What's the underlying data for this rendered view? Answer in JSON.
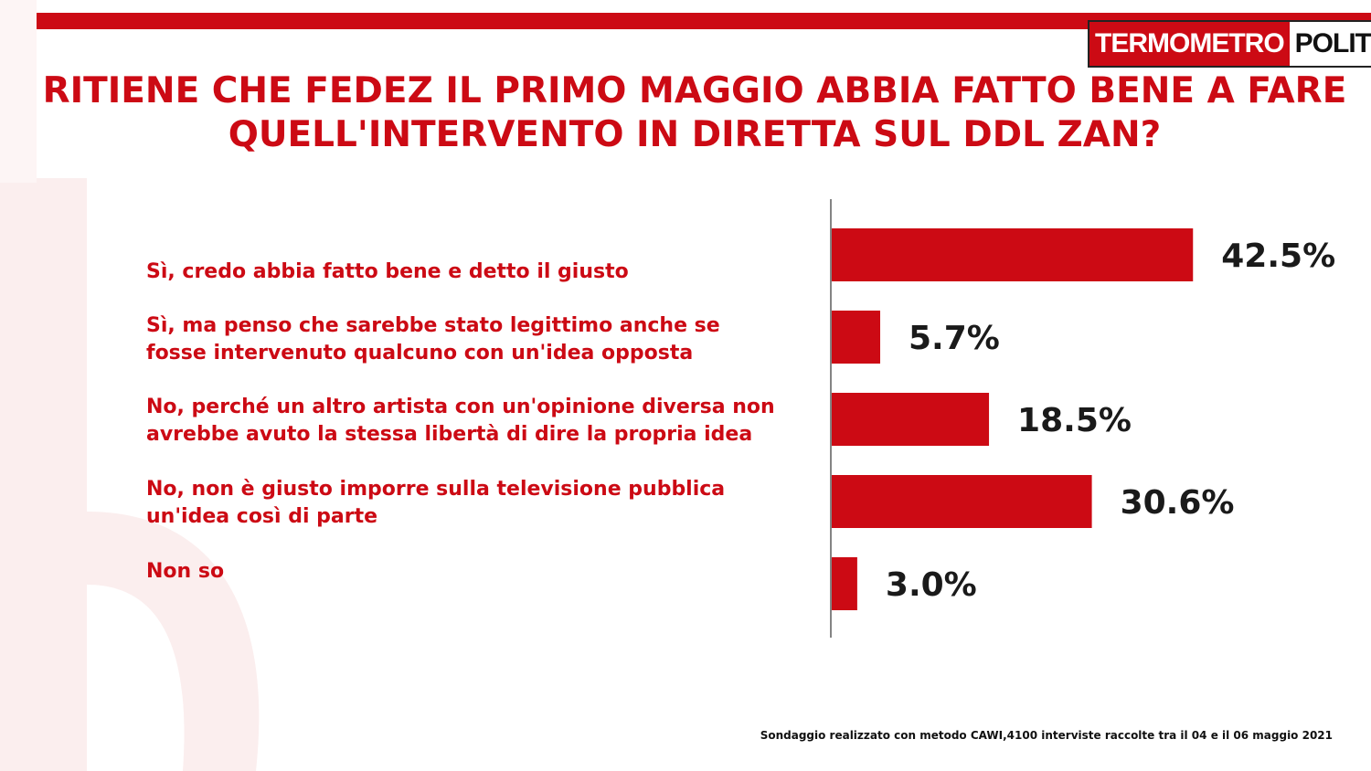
{
  "header": {
    "logo_left": "TERMOMETRO",
    "logo_right": "POLITICO",
    "title": "RITIENE CHE FEDEZ IL PRIMO MAGGIO ABBIA FATTO BENE A FARE QUELL'INTERVENTO IN DIRETTA SUL DDL ZAN?"
  },
  "colors": {
    "accent": "#cc0a14",
    "bar": "#cc0a14"
  },
  "chart_data": {
    "type": "bar",
    "orientation": "horizontal",
    "title": "RITIENE CHE FEDEZ IL PRIMO MAGGIO ABBIA FATTO BENE A FARE QUELL'INTERVENTO IN DIRETTA SUL DDL ZAN?",
    "categories": [
      "Sì, credo abbia fatto bene e detto il giusto",
      "Sì, ma penso che sarebbe stato legittimo anche se fosse intervenuto qualcuno con un'idea opposta",
      "No, perché un altro artista con un'opinione diversa non avrebbe avuto la stessa libertà  di dire la propria idea",
      "No, non è giusto imporre sulla televisione pubblica un'idea così di parte",
      "Non so"
    ],
    "values": [
      42.5,
      5.7,
      18.5,
      30.6,
      3.0
    ],
    "value_labels": [
      "42.5%",
      "5.7%",
      "18.5%",
      "30.6%",
      "3.0%"
    ],
    "xlim": [
      0,
      100
    ],
    "grid": false,
    "legend": "none"
  },
  "labels": [
    {
      "lines": [
        "Sì, credo abbia fatto bene e detto il giusto"
      ]
    },
    {
      "lines": [
        "Sì, ma penso che sarebbe stato legittimo anche se",
        "fosse intervenuto qualcuno con un'idea opposta"
      ]
    },
    {
      "lines": [
        "No, perché un altro artista con un'opinione diversa non",
        "avrebbe avuto la stessa libertà  di dire la propria idea"
      ]
    },
    {
      "lines": [
        "No, non è giusto imporre sulla televisione pubblica",
        "un'idea così di parte"
      ]
    },
    {
      "lines": [
        "Non so"
      ]
    }
  ],
  "footer": {
    "note": "Sondaggio realizzato con metodo CAWI,4100 interviste raccolte tra il 04 e il 06 maggio 2021"
  }
}
